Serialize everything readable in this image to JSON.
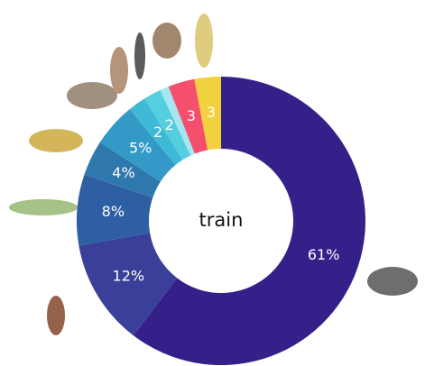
{
  "chart_data": {
    "type": "donut",
    "center_label": "train",
    "values": [
      61,
      12,
      8,
      4,
      5,
      2,
      2,
      1,
      3,
      3
    ],
    "value_labels": [
      "61%",
      "12%",
      "8%",
      "4%",
      "5%",
      "2",
      "2",
      null,
      "3",
      "3"
    ],
    "colors": [
      "#35208a",
      "#3a3f99",
      "#2e5fa3",
      "#2f78ad",
      "#3399c6",
      "#3fbad6",
      "#55cfe0",
      "#a8e6ef",
      "#f4506e",
      "#f2d13e"
    ]
  }
}
